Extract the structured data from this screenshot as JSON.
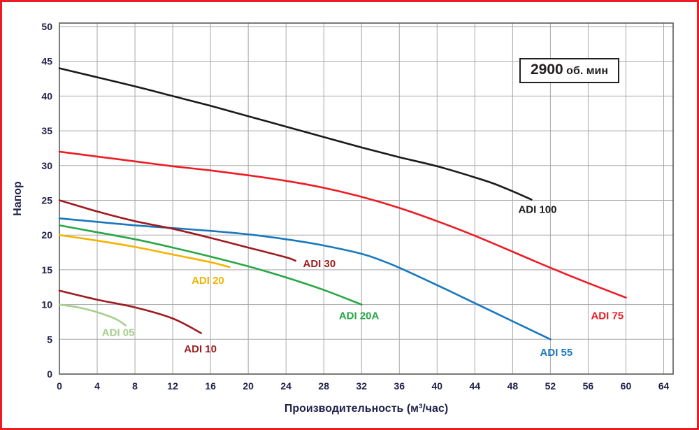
{
  "frame": {
    "border_color": "#ed1c24"
  },
  "rpm_box": {
    "value": "2900",
    "unit": " об. мин"
  },
  "chart_data": {
    "type": "line",
    "title": "",
    "xlabel": "Производительность (м³/час)",
    "ylabel": "Напор",
    "xlim": [
      0,
      65
    ],
    "ylim": [
      0,
      50.5
    ],
    "xticks": [
      0,
      4,
      8,
      12,
      16,
      20,
      24,
      28,
      32,
      36,
      40,
      44,
      48,
      52,
      56,
      60,
      64
    ],
    "yticks": [
      0,
      5,
      10,
      15,
      20,
      25,
      30,
      35,
      40,
      45,
      50
    ],
    "grid": true,
    "legend_position": "labels-on-chart",
    "colors": {
      "grid": "#a6a8ab",
      "plot_border": "#58595b",
      "tick_text": "#21214c"
    },
    "series": [
      {
        "name": "ADI 100",
        "color": "#1a1a1a",
        "points": [
          [
            0,
            44
          ],
          [
            4,
            42.7
          ],
          [
            8,
            41.4
          ],
          [
            12,
            40
          ],
          [
            16,
            38.6
          ],
          [
            20,
            37.1
          ],
          [
            24,
            35.6
          ],
          [
            28,
            34.1
          ],
          [
            32,
            32.6
          ],
          [
            36,
            31.2
          ],
          [
            40,
            29.9
          ],
          [
            44,
            28.3
          ],
          [
            46,
            27.4
          ],
          [
            48,
            26.3
          ],
          [
            50,
            25.1
          ]
        ],
        "label": {
          "x": 48.6,
          "y": 23.2
        }
      },
      {
        "name": "ADI 75",
        "color": "#ed1c24",
        "points": [
          [
            0,
            32
          ],
          [
            4,
            31.3
          ],
          [
            8,
            30.6
          ],
          [
            12,
            29.9
          ],
          [
            16,
            29.3
          ],
          [
            20,
            28.6
          ],
          [
            24,
            27.8
          ],
          [
            28,
            26.8
          ],
          [
            32,
            25.5
          ],
          [
            36,
            23.9
          ],
          [
            40,
            22
          ],
          [
            44,
            19.9
          ],
          [
            48,
            17.6
          ],
          [
            52,
            15.3
          ],
          [
            56,
            13.1
          ],
          [
            60,
            11
          ]
        ],
        "label": {
          "x": 56.3,
          "y": 7.9
        }
      },
      {
        "name": "ADI 55",
        "color": "#1878be",
        "points": [
          [
            0,
            22.4
          ],
          [
            4,
            21.9
          ],
          [
            8,
            21.4
          ],
          [
            12,
            21
          ],
          [
            16,
            20.6
          ],
          [
            20,
            20.1
          ],
          [
            24,
            19.4
          ],
          [
            28,
            18.5
          ],
          [
            32,
            17.3
          ],
          [
            34,
            16.4
          ],
          [
            36,
            15.3
          ],
          [
            40,
            12.8
          ],
          [
            44,
            10.2
          ],
          [
            48,
            7.6
          ],
          [
            52,
            5
          ]
        ],
        "label": {
          "x": 50.9,
          "y": 2.6
        }
      },
      {
        "name": "ADI 30",
        "color": "#9e1b1f",
        "points": [
          [
            0,
            25
          ],
          [
            4,
            23.4
          ],
          [
            8,
            22
          ],
          [
            12,
            20.9
          ],
          [
            16,
            19.6
          ],
          [
            20,
            18.2
          ],
          [
            24,
            16.8
          ],
          [
            25,
            16.3
          ]
        ],
        "label": {
          "x": 25.8,
          "y": 15.4
        }
      },
      {
        "name": "ADI 20",
        "color": "#f5b200",
        "points": [
          [
            0,
            20
          ],
          [
            4,
            19.2
          ],
          [
            8,
            18.3
          ],
          [
            12,
            17.2
          ],
          [
            16,
            16.1
          ],
          [
            18,
            15.4
          ]
        ],
        "label": {
          "x": 14.0,
          "y": 13.0
        }
      },
      {
        "name": "ADI 20A",
        "color": "#28a745",
        "points": [
          [
            0,
            21.4
          ],
          [
            4,
            20.4
          ],
          [
            8,
            19.4
          ],
          [
            12,
            18.2
          ],
          [
            16,
            16.9
          ],
          [
            20,
            15.5
          ],
          [
            24,
            13.9
          ],
          [
            28,
            12.1
          ],
          [
            32,
            10
          ]
        ],
        "label": {
          "x": 29.6,
          "y": 7.9
        }
      },
      {
        "name": "ADI 10",
        "color": "#9e1b1f",
        "points": [
          [
            0,
            12
          ],
          [
            4,
            10.7
          ],
          [
            8,
            9.6
          ],
          [
            12,
            8
          ],
          [
            15,
            5.9
          ]
        ],
        "label": {
          "x": 13.2,
          "y": 3.1
        }
      },
      {
        "name": "ADI 05",
        "color": "#a6cf8d",
        "points": [
          [
            0,
            10
          ],
          [
            2,
            9.6
          ],
          [
            4,
            8.9
          ],
          [
            6,
            7.9
          ],
          [
            7,
            7
          ]
        ],
        "label": {
          "x": 4.5,
          "y": 5.5
        }
      }
    ]
  }
}
